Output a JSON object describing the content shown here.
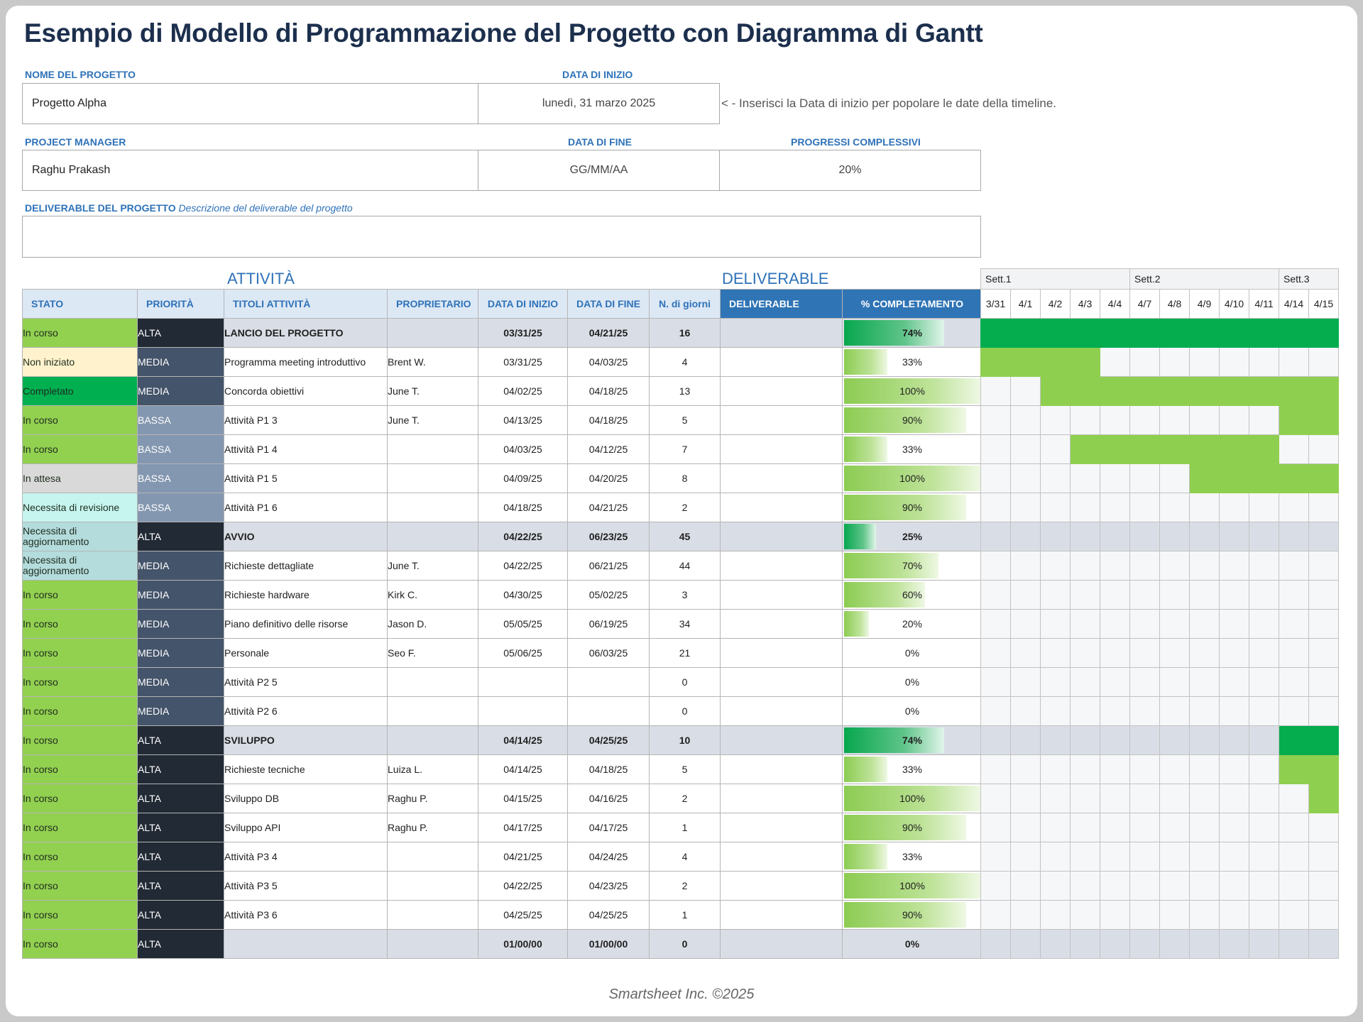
{
  "title": "Esempio di Modello di Programmazione del Progetto con Diagramma di Gantt",
  "project": {
    "name_label": "NOME DEL PROGETTO",
    "name": "Progetto Alpha",
    "start_label": "DATA DI INIZIO",
    "start": "lunedì, 31 marzo 2025",
    "start_hint": "< - Inserisci la Data di inizio per popolare le date della timeline.",
    "pm_label": "PROJECT MANAGER",
    "pm": "Raghu Prakash",
    "end_label": "DATA DI FINE",
    "end": "GG/MM/AA",
    "progress_label": "PROGRESSI COMPLESSIVI",
    "progress": "20%",
    "deliverable_label": "DELIVERABLE DEL PROGETTO",
    "deliverable_hint": "Descrizione del deliverable del progetto",
    "deliverable": ""
  },
  "sections": {
    "activities": "ATTIVITÀ",
    "deliverables": "DELIVERABLE"
  },
  "columns": {
    "status": "STATO",
    "priority": "PRIORITÀ",
    "task": "TITOLI ATTIVITÀ",
    "owner": "PROPRIETARIO",
    "start": "DATA DI INIZIO",
    "end": "DATA DI FINE",
    "days": "N. di giorni",
    "deliverable": "DELIVERABLE",
    "complete": "% COMPLETAMENTO"
  },
  "weeks": [
    "Sett.1",
    "Sett.2",
    "Sett.3"
  ],
  "days": [
    "3/31",
    "4/1",
    "4/2",
    "4/3",
    "4/4",
    "4/7",
    "4/8",
    "4/9",
    "4/10",
    "4/11",
    "4/14",
    "4/15"
  ],
  "colors": {
    "status": {
      "In corso": "#92d050",
      "Non iniziato": "#fff2cc",
      "Completato": "#00b050",
      "In attesa": "#d9d9d9",
      "Necessita di revisione": "#c6f5ef",
      "Necessita di aggiornamento": "#b4dcdc"
    },
    "priority": {
      "ALTA": "#222a35",
      "MEDIA": "#44546a",
      "BASSA": "#8497b0"
    }
  },
  "rows": [
    {
      "status": "In corso",
      "priority": "ALTA",
      "task": "LANCIO DEL PROGETTO",
      "owner": "",
      "start": "03/31/25",
      "end": "04/21/25",
      "days": "16",
      "deliverable": "",
      "pct": 74,
      "pct_label": "74%",
      "phase": true,
      "bar": [
        0,
        11
      ]
    },
    {
      "status": "Non iniziato",
      "priority": "MEDIA",
      "task": "Programma meeting introduttivo",
      "owner": "Brent W.",
      "start": "03/31/25",
      "end": "04/03/25",
      "days": "4",
      "deliverable": "",
      "pct": 33,
      "pct_label": "33%",
      "phase": false,
      "bar": [
        0,
        3
      ]
    },
    {
      "status": "Completato",
      "priority": "MEDIA",
      "task": "Concorda obiettivi",
      "owner": "June T.",
      "start": "04/02/25",
      "end": "04/18/25",
      "days": "13",
      "deliverable": "",
      "pct": 100,
      "pct_label": "100%",
      "phase": false,
      "bar": [
        2,
        11
      ]
    },
    {
      "status": "In corso",
      "priority": "BASSA",
      "task": "Attività P1 3",
      "owner": "June T.",
      "start": "04/13/25",
      "end": "04/18/25",
      "days": "5",
      "deliverable": "",
      "pct": 90,
      "pct_label": "90%",
      "phase": false,
      "bar": [
        10,
        11
      ]
    },
    {
      "status": "In corso",
      "priority": "BASSA",
      "task": "Attività P1 4",
      "owner": "",
      "start": "04/03/25",
      "end": "04/12/25",
      "days": "7",
      "deliverable": "",
      "pct": 33,
      "pct_label": "33%",
      "phase": false,
      "bar": [
        3,
        9
      ]
    },
    {
      "status": "In attesa",
      "priority": "BASSA",
      "task": "Attività P1 5",
      "owner": "",
      "start": "04/09/25",
      "end": "04/20/25",
      "days": "8",
      "deliverable": "",
      "pct": 100,
      "pct_label": "100%",
      "phase": false,
      "bar": [
        7,
        11
      ]
    },
    {
      "status": "Necessita di revisione",
      "priority": "BASSA",
      "task": "Attività P1 6",
      "owner": "",
      "start": "04/18/25",
      "end": "04/21/25",
      "days": "2",
      "deliverable": "",
      "pct": 90,
      "pct_label": "90%",
      "phase": false,
      "bar": null
    },
    {
      "status": "Necessita di aggiornamento",
      "priority": "ALTA",
      "task": "AVVIO",
      "owner": "",
      "start": "04/22/25",
      "end": "06/23/25",
      "days": "45",
      "deliverable": "",
      "pct": 25,
      "pct_label": "25%",
      "phase": true,
      "bar": null
    },
    {
      "status": "Necessita di aggiornamento",
      "priority": "MEDIA",
      "task": "Richieste dettagliate",
      "owner": "June T.",
      "start": "04/22/25",
      "end": "06/21/25",
      "days": "44",
      "deliverable": "",
      "pct": 70,
      "pct_label": "70%",
      "phase": false,
      "bar": null
    },
    {
      "status": "In corso",
      "priority": "MEDIA",
      "task": "Richieste hardware",
      "owner": "Kirk C.",
      "start": "04/30/25",
      "end": "05/02/25",
      "days": "3",
      "deliverable": "",
      "pct": 60,
      "pct_label": "60%",
      "phase": false,
      "bar": null
    },
    {
      "status": "In corso",
      "priority": "MEDIA",
      "task": "Piano definitivo delle risorse",
      "owner": "Jason D.",
      "start": "05/05/25",
      "end": "06/19/25",
      "days": "34",
      "deliverable": "",
      "pct": 20,
      "pct_label": "20%",
      "phase": false,
      "bar": null
    },
    {
      "status": "In corso",
      "priority": "MEDIA",
      "task": "Personale",
      "owner": "Seo F.",
      "start": "05/06/25",
      "end": "06/03/25",
      "days": "21",
      "deliverable": "",
      "pct": 0,
      "pct_label": "0%",
      "phase": false,
      "bar": null
    },
    {
      "status": "In corso",
      "priority": "MEDIA",
      "task": "Attività P2 5",
      "owner": "",
      "start": "",
      "end": "",
      "days": "0",
      "deliverable": "",
      "pct": 0,
      "pct_label": "0%",
      "phase": false,
      "bar": null
    },
    {
      "status": "In corso",
      "priority": "MEDIA",
      "task": "Attività P2 6",
      "owner": "",
      "start": "",
      "end": "",
      "days": "0",
      "deliverable": "",
      "pct": 0,
      "pct_label": "0%",
      "phase": false,
      "bar": null
    },
    {
      "status": "In corso",
      "priority": "ALTA",
      "task": "SVILUPPO",
      "owner": "",
      "start": "04/14/25",
      "end": "04/25/25",
      "days": "10",
      "deliverable": "",
      "pct": 74,
      "pct_label": "74%",
      "phase": true,
      "bar": [
        10,
        11
      ]
    },
    {
      "status": "In corso",
      "priority": "ALTA",
      "task": "Richieste tecniche",
      "owner": "Luiza L.",
      "start": "04/14/25",
      "end": "04/18/25",
      "days": "5",
      "deliverable": "",
      "pct": 33,
      "pct_label": "33%",
      "phase": false,
      "bar": [
        10,
        11
      ]
    },
    {
      "status": "In corso",
      "priority": "ALTA",
      "task": "Sviluppo DB",
      "owner": "Raghu P.",
      "start": "04/15/25",
      "end": "04/16/25",
      "days": "2",
      "deliverable": "",
      "pct": 100,
      "pct_label": "100%",
      "phase": false,
      "bar": [
        11,
        11
      ]
    },
    {
      "status": "In corso",
      "priority": "ALTA",
      "task": "Sviluppo API",
      "owner": "Raghu P.",
      "start": "04/17/25",
      "end": "04/17/25",
      "days": "1",
      "deliverable": "",
      "pct": 90,
      "pct_label": "90%",
      "phase": false,
      "bar": null
    },
    {
      "status": "In corso",
      "priority": "ALTA",
      "task": "Attività P3 4",
      "owner": "",
      "start": "04/21/25",
      "end": "04/24/25",
      "days": "4",
      "deliverable": "",
      "pct": 33,
      "pct_label": "33%",
      "phase": false,
      "bar": null
    },
    {
      "status": "In corso",
      "priority": "ALTA",
      "task": "Attività P3 5",
      "owner": "",
      "start": "04/22/25",
      "end": "04/23/25",
      "days": "2",
      "deliverable": "",
      "pct": 100,
      "pct_label": "100%",
      "phase": false,
      "bar": null
    },
    {
      "status": "In corso",
      "priority": "ALTA",
      "task": "Attività P3 6",
      "owner": "",
      "start": "04/25/25",
      "end": "04/25/25",
      "days": "1",
      "deliverable": "",
      "pct": 90,
      "pct_label": "90%",
      "phase": false,
      "bar": null
    },
    {
      "status": "In corso",
      "priority": "ALTA",
      "task": "",
      "owner": "",
      "start": "01/00/00",
      "end": "01/00/00",
      "days": "0",
      "deliverable": "",
      "pct": 0,
      "pct_label": "0%",
      "phase": true,
      "bar": null
    }
  ],
  "footer": "Smartsheet Inc. ©2025"
}
